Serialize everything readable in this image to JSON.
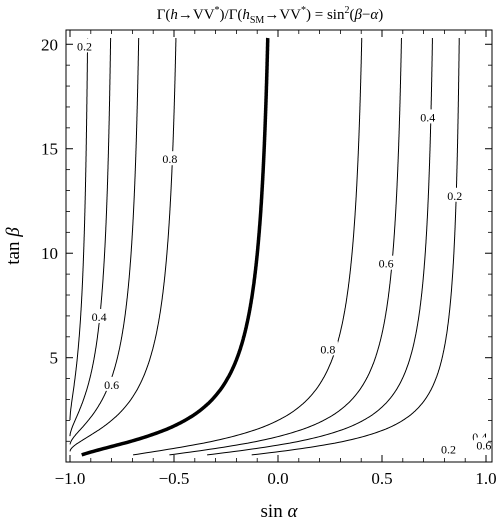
{
  "chart_data": {
    "type": "contour",
    "title_parts": {
      "g1": "Γ",
      "o1": "(",
      "h": "h",
      "arrow1": "→",
      "vv1": "VV",
      "star1": "*",
      "cp1": ")/",
      "g2": "Γ",
      "o2": "(",
      "hsm": "h",
      "sm": "SM",
      "arrow2": "→",
      "vv2": "VV",
      "star2": "*",
      "cp2": ") = sin",
      "sq": "2",
      "open3": "(",
      "beta": "β",
      "minus": "−",
      "alpha": "α",
      "close3": ")"
    },
    "xlabel_parts": {
      "func": "sin ",
      "sym": "α"
    },
    "ylabel_parts": {
      "func": "tan ",
      "sym": "β"
    },
    "xlim": [
      -1.0,
      1.0
    ],
    "ylim": [
      0.2,
      20.3
    ],
    "x_ticks": [
      {
        "value": -1.0,
        "label": "−1.0"
      },
      {
        "value": -0.5,
        "label": "−0.5"
      },
      {
        "value": 0.0,
        "label": "0.0"
      },
      {
        "value": 0.5,
        "label": "0.5"
      },
      {
        "value": 1.0,
        "label": "1.0"
      }
    ],
    "y_ticks": [
      {
        "value": 5,
        "label": "5"
      },
      {
        "value": 10,
        "label": "10"
      },
      {
        "value": 15,
        "label": "15"
      },
      {
        "value": 20,
        "label": "20"
      }
    ],
    "contour_levels": [
      0.2,
      0.4,
      0.6,
      0.8,
      1.0
    ],
    "contour_labels": [
      {
        "text": "0.2",
        "x": -0.93,
        "y": 19.9
      },
      {
        "text": "0.8",
        "x": -0.52,
        "y": 14.5
      },
      {
        "text": "0.4",
        "x": -0.86,
        "y": 6.95
      },
      {
        "text": "0.6",
        "x": -0.8,
        "y": 3.7
      },
      {
        "text": "0.4",
        "x": 0.72,
        "y": 16.5
      },
      {
        "text": "0.2",
        "x": 0.85,
        "y": 12.75
      },
      {
        "text": "0.6",
        "x": 0.52,
        "y": 9.5
      },
      {
        "text": "0.8",
        "x": 0.24,
        "y": 5.4
      },
      {
        "text": "0.2",
        "x": 0.82,
        "y": 0.6
      },
      {
        "text": "0.4",
        "x": 0.97,
        "y": 1.2
      },
      {
        "text": "0.6",
        "x": 0.99,
        "y": 0.8
      }
    ]
  }
}
